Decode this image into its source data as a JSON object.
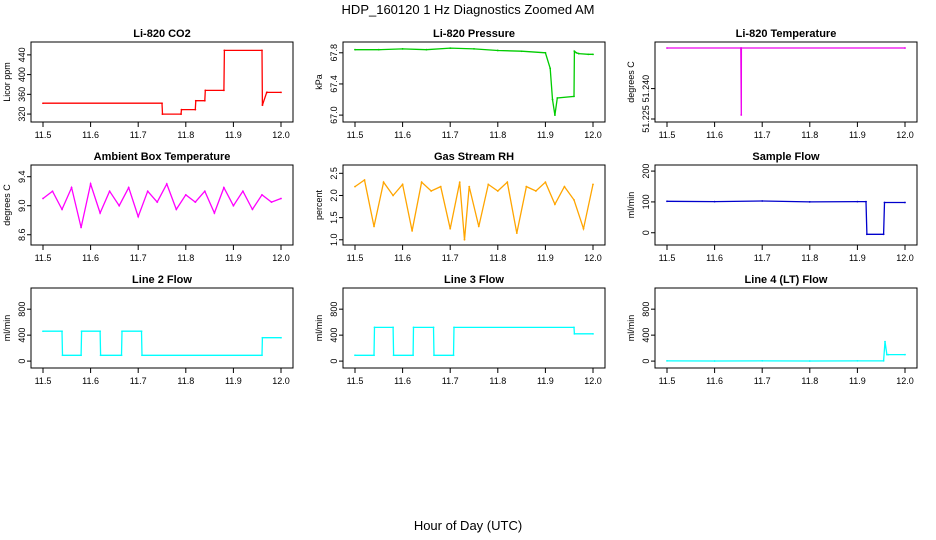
{
  "figure": {
    "title": "HDP_160120  1 Hz Diagnostics Zoomed AM",
    "x_caption": "Hour of Day (UTC)"
  },
  "chart_data": [
    {
      "type": "line",
      "title": "Li-820 CO2",
      "ylabel": "Licor ppm",
      "color": "#ff0000",
      "xlim": [
        11.5,
        12.0
      ],
      "ylim": [
        310,
        460
      ],
      "xticks": [
        11.5,
        11.6,
        11.7,
        11.8,
        11.9,
        12.0
      ],
      "xtick_labels": [
        "11.5",
        "11.6",
        "11.7",
        "11.8",
        "11.9",
        "12.0"
      ],
      "yticks": [
        320,
        360,
        400,
        440
      ],
      "ytick_labels": [
        "320",
        "360",
        "400",
        "440"
      ],
      "x": [
        11.5,
        11.75,
        11.751,
        11.79,
        11.791,
        11.82,
        11.821,
        11.84,
        11.841,
        11.88,
        11.881,
        11.96,
        11.961,
        11.97,
        11.971,
        12.0
      ],
      "y": [
        342,
        342,
        320,
        320,
        329,
        329,
        347,
        347,
        368,
        368,
        449,
        449,
        338,
        364,
        364,
        364
      ]
    },
    {
      "type": "line",
      "title": "Li-820 Pressure",
      "ylabel": "kPa",
      "color": "#00cc00",
      "xlim": [
        11.5,
        12.0
      ],
      "ylim": [
        66.95,
        67.9
      ],
      "xticks": [
        11.5,
        11.6,
        11.7,
        11.8,
        11.9,
        12.0
      ],
      "xtick_labels": [
        "11.5",
        "11.6",
        "11.7",
        "11.8",
        "11.9",
        "12.0"
      ],
      "yticks": [
        67.0,
        67.4,
        67.8
      ],
      "ytick_labels": [
        "67.0",
        "67.4",
        "67.8"
      ],
      "x": [
        11.5,
        11.55,
        11.6,
        11.65,
        11.7,
        11.75,
        11.8,
        11.85,
        11.9,
        11.91,
        11.915,
        11.92,
        11.925,
        11.96,
        11.961,
        11.965,
        11.97,
        11.99,
        12.0
      ],
      "y": [
        67.84,
        67.84,
        67.85,
        67.84,
        67.86,
        67.85,
        67.83,
        67.82,
        67.8,
        67.6,
        67.2,
        67.0,
        67.22,
        67.24,
        67.82,
        67.8,
        67.79,
        67.78,
        67.78
      ]
    },
    {
      "type": "line",
      "title": "Li-820 Temperature",
      "ylabel": "degrees C",
      "color": "#ee00ee",
      "xlim": [
        11.5,
        12.0
      ],
      "ylim": [
        51.225,
        51.2615
      ],
      "xticks": [
        11.5,
        11.6,
        11.7,
        11.8,
        11.9,
        12.0
      ],
      "xtick_labels": [
        "11.5",
        "11.6",
        "11.7",
        "11.8",
        "11.9",
        "12.0"
      ],
      "yticks": [
        51.225,
        51.24
      ],
      "ytick_labels": [
        "51.225",
        "51.240"
      ],
      "x": [
        11.5,
        11.655,
        11.656,
        11.6562,
        12.0
      ],
      "y": [
        51.26,
        51.26,
        51.227,
        51.26,
        51.26
      ]
    },
    {
      "type": "line",
      "title": "Ambient Box Temperature",
      "ylabel": "degrees C",
      "color": "#ff00ff",
      "xlim": [
        11.5,
        12.0
      ],
      "ylim": [
        8.5,
        9.52
      ],
      "xticks": [
        11.5,
        11.6,
        11.7,
        11.8,
        11.9,
        12.0
      ],
      "xtick_labels": [
        "11.5",
        "11.6",
        "11.7",
        "11.8",
        "11.9",
        "12.0"
      ],
      "yticks": [
        8.6,
        9.0,
        9.4
      ],
      "ytick_labels": [
        "8.6",
        "9.0",
        "9.4"
      ],
      "x": [
        11.5,
        11.52,
        11.54,
        11.56,
        11.58,
        11.6,
        11.62,
        11.64,
        11.66,
        11.68,
        11.7,
        11.72,
        11.74,
        11.76,
        11.78,
        11.8,
        11.82,
        11.84,
        11.86,
        11.88,
        11.9,
        11.92,
        11.94,
        11.96,
        11.98,
        12.0
      ],
      "y": [
        9.1,
        9.2,
        8.95,
        9.25,
        8.7,
        9.3,
        8.9,
        9.2,
        9.0,
        9.25,
        8.85,
        9.2,
        9.05,
        9.3,
        8.95,
        9.15,
        9.05,
        9.2,
        8.9,
        9.25,
        9.0,
        9.2,
        8.95,
        9.15,
        9.05,
        9.1
      ]
    },
    {
      "type": "line",
      "title": "Gas Stream RH",
      "ylabel": "percent",
      "color": "#ffa500",
      "xlim": [
        11.5,
        12.0
      ],
      "ylim": [
        0.95,
        2.62
      ],
      "xticks": [
        11.5,
        11.6,
        11.7,
        11.8,
        11.9,
        12.0
      ],
      "xtick_labels": [
        "11.5",
        "11.6",
        "11.7",
        "11.8",
        "11.9",
        "12.0"
      ],
      "yticks": [
        1.0,
        1.5,
        2.0,
        2.5
      ],
      "ytick_labels": [
        "1.0",
        "1.5",
        "2.0",
        "2.5"
      ],
      "x": [
        11.5,
        11.52,
        11.54,
        11.56,
        11.58,
        11.6,
        11.62,
        11.64,
        11.66,
        11.68,
        11.7,
        11.72,
        11.73,
        11.74,
        11.76,
        11.78,
        11.8,
        11.82,
        11.84,
        11.86,
        11.88,
        11.9,
        11.92,
        11.94,
        11.96,
        11.98,
        12.0
      ],
      "y": [
        2.2,
        2.35,
        1.3,
        2.3,
        2.0,
        2.25,
        1.2,
        2.3,
        2.1,
        2.2,
        1.25,
        2.3,
        1.0,
        2.2,
        1.3,
        2.25,
        2.1,
        2.3,
        1.15,
        2.2,
        2.1,
        2.3,
        1.8,
        2.2,
        1.9,
        1.25,
        2.25
      ]
    },
    {
      "type": "line",
      "title": "Sample Flow",
      "ylabel": "ml/min",
      "color": "#0000cc",
      "xlim": [
        11.5,
        12.0
      ],
      "ylim": [
        -30,
        210
      ],
      "xticks": [
        11.5,
        11.6,
        11.7,
        11.8,
        11.9,
        12.0
      ],
      "xtick_labels": [
        "11.5",
        "11.6",
        "11.7",
        "11.8",
        "11.9",
        "12.0"
      ],
      "yticks": [
        0,
        100,
        200
      ],
      "ytick_labels": [
        "0",
        "100",
        "200"
      ],
      "x": [
        11.5,
        11.6,
        11.7,
        11.8,
        11.9,
        11.918,
        11.92,
        11.955,
        11.957,
        12.0
      ],
      "y": [
        102,
        101,
        103,
        100,
        101,
        101,
        -5,
        -5,
        98,
        98
      ]
    },
    {
      "type": "line",
      "title": "Line 2 Flow",
      "ylabel": "ml/min",
      "color": "#00ffff",
      "xlim": [
        11.5,
        12.0
      ],
      "ylim": [
        -60,
        1080
      ],
      "xticks": [
        11.5,
        11.6,
        11.7,
        11.8,
        11.9,
        12.0
      ],
      "xtick_labels": [
        "11.5",
        "11.6",
        "11.7",
        "11.8",
        "11.9",
        "12.0"
      ],
      "yticks": [
        0,
        400,
        800
      ],
      "ytick_labels": [
        "0",
        "400",
        "800"
      ],
      "x": [
        11.5,
        11.54,
        11.541,
        11.58,
        11.581,
        11.62,
        11.621,
        11.665,
        11.666,
        11.707,
        11.708,
        11.96,
        11.961,
        12.0
      ],
      "y": [
        460,
        460,
        90,
        90,
        460,
        460,
        90,
        90,
        460,
        460,
        90,
        90,
        360,
        360
      ]
    },
    {
      "type": "line",
      "title": "Line 3 Flow",
      "ylabel": "ml/min",
      "color": "#00ffff",
      "xlim": [
        11.5,
        12.0
      ],
      "ylim": [
        -60,
        1080
      ],
      "xticks": [
        11.5,
        11.6,
        11.7,
        11.8,
        11.9,
        12.0
      ],
      "xtick_labels": [
        "11.5",
        "11.6",
        "11.7",
        "11.8",
        "11.9",
        "12.0"
      ],
      "yticks": [
        0,
        400,
        800
      ],
      "ytick_labels": [
        "0",
        "400",
        "800"
      ],
      "x": [
        11.5,
        11.54,
        11.541,
        11.58,
        11.581,
        11.622,
        11.623,
        11.665,
        11.666,
        11.707,
        11.708,
        11.96,
        11.961,
        12.0
      ],
      "y": [
        90,
        90,
        520,
        520,
        90,
        90,
        520,
        520,
        90,
        90,
        520,
        520,
        420,
        420
      ]
    },
    {
      "type": "line",
      "title": "Line 4 (LT) Flow",
      "ylabel": "ml/min",
      "color": "#00ffff",
      "xlim": [
        11.5,
        12.0
      ],
      "ylim": [
        -60,
        1080
      ],
      "xticks": [
        11.5,
        11.6,
        11.7,
        11.8,
        11.9,
        12.0
      ],
      "xtick_labels": [
        "11.5",
        "11.6",
        "11.7",
        "11.8",
        "11.9",
        "12.0"
      ],
      "yticks": [
        0,
        400,
        800
      ],
      "ytick_labels": [
        "0",
        "400",
        "800"
      ],
      "x": [
        11.5,
        11.6,
        11.7,
        11.8,
        11.9,
        11.955,
        11.958,
        11.962,
        11.965,
        12.0
      ],
      "y": [
        3,
        2,
        3,
        2,
        3,
        3,
        300,
        100,
        100,
        100
      ]
    }
  ]
}
